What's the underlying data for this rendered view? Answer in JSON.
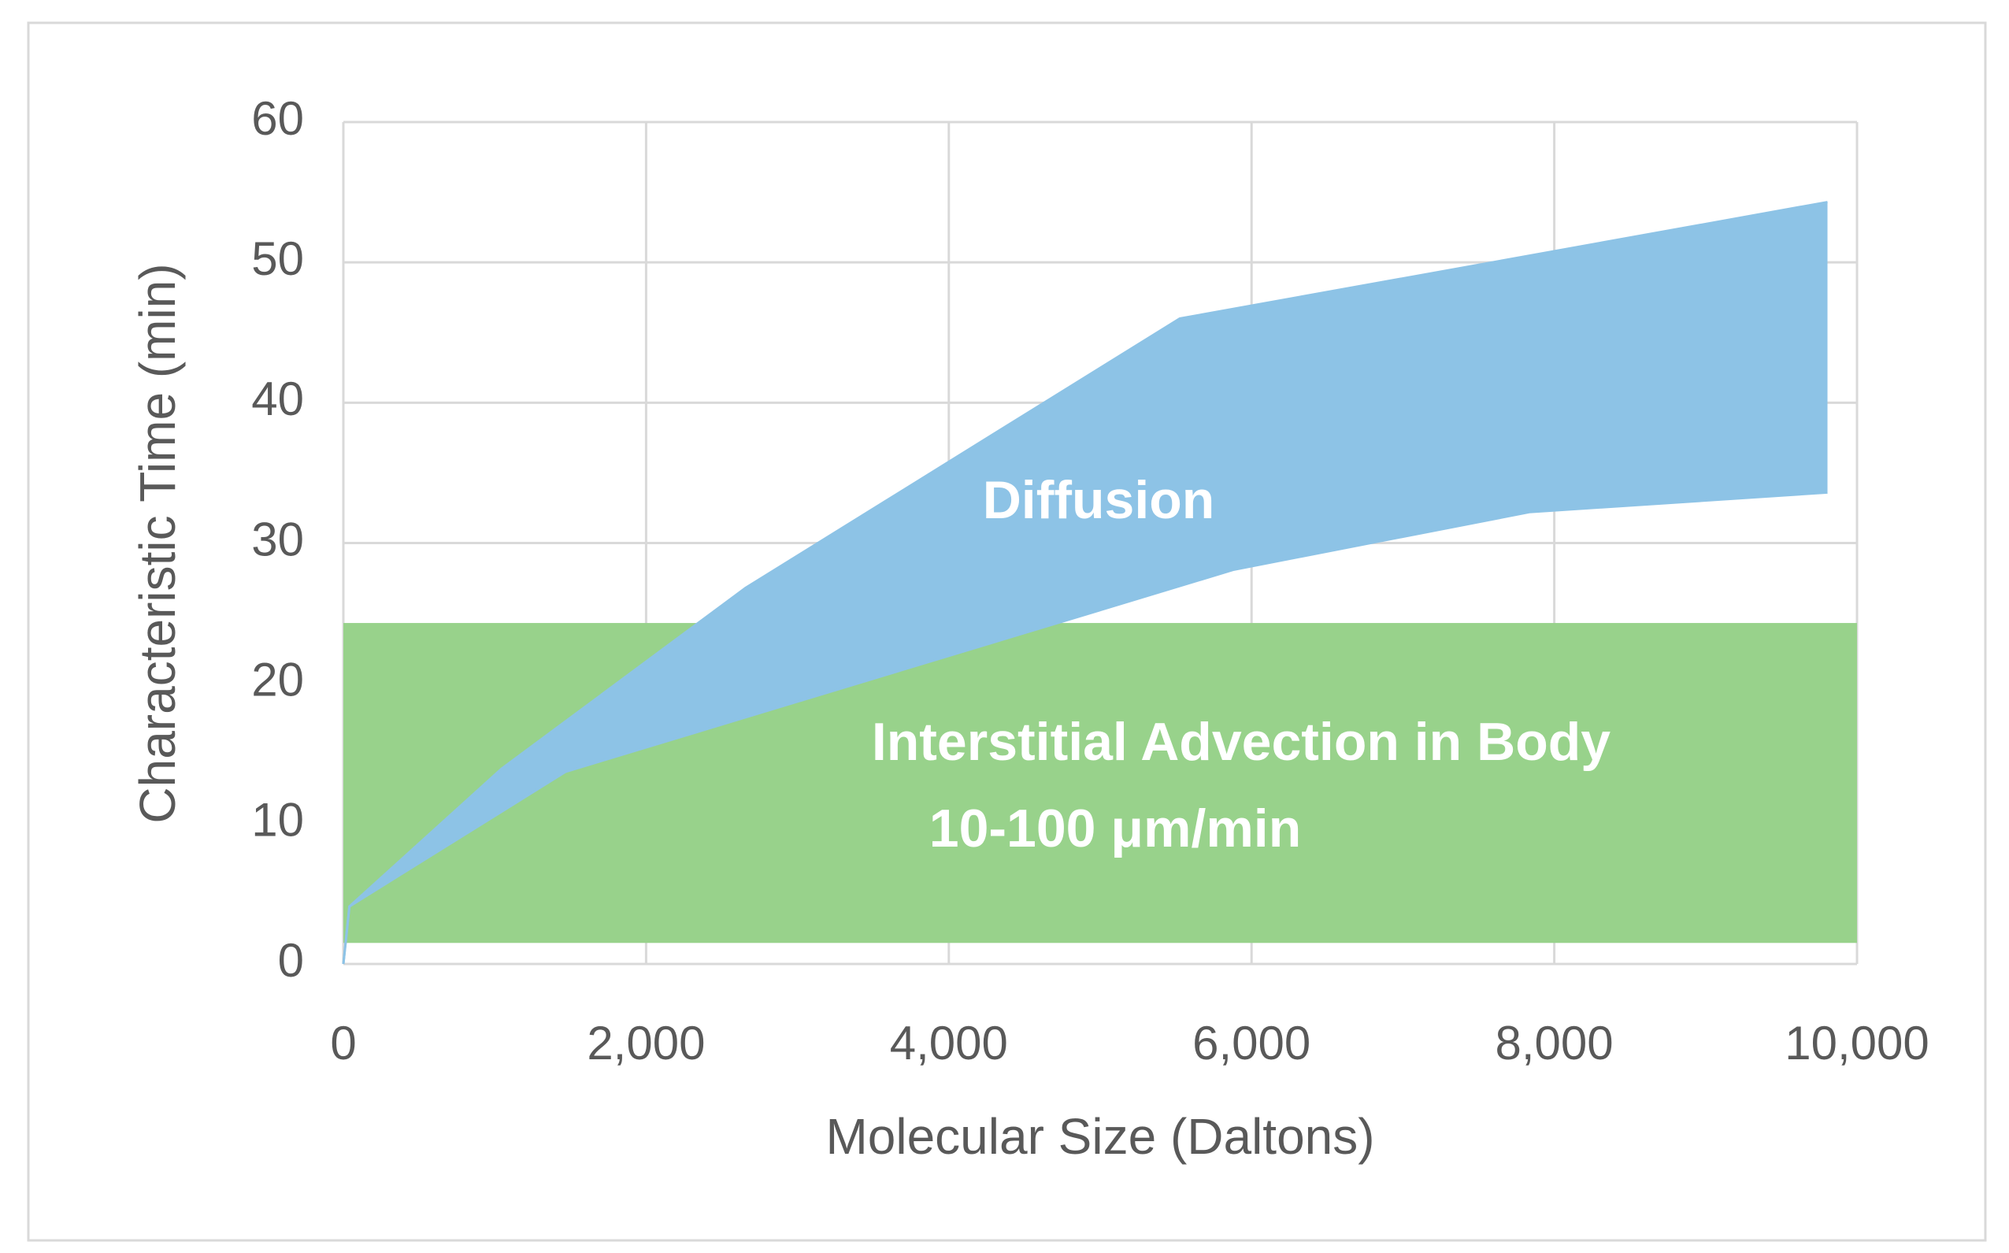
{
  "chart_data": {
    "type": "band",
    "x_label": "Molecular Size (Daltons)",
    "y_label": "Characteristic Time (min)",
    "xlim": [
      0,
      10000
    ],
    "xticks": [
      0,
      {
        "value": 2000,
        "label": "2,000"
      },
      {
        "value": 4000,
        "label": "4,000"
      },
      {
        "value": 6000,
        "label": "6,000"
      },
      {
        "value": 8000,
        "label": "8,000"
      },
      {
        "value": 10000,
        "label": "10,000"
      }
    ],
    "ylim": [
      0,
      60
    ],
    "yticks": [
      0,
      10,
      20,
      30,
      40,
      50,
      60
    ],
    "grid": true,
    "region": {
      "x": [
        0,
        10000
      ],
      "y": [
        1.5,
        24.3
      ],
      "color": "#98d28b",
      "label": "Interstitial Advection in Body",
      "sublabel": "10-100 μm/min"
    },
    "band_color": "#8dc3e6",
    "band_label": "Diffusion",
    "series": [
      {
        "x": [
          0,
          40,
          1044,
          2657,
          5526,
          9805
        ],
        "values": [
          0,
          4.1,
          13.9,
          26.8,
          46.0,
          54.3
        ]
      },
      {
        "x": [
          0,
          40,
          1469,
          5883,
          7835,
          9805
        ],
        "values": [
          0,
          4.1,
          13.7,
          28.1,
          32.2,
          33.6
        ]
      }
    ]
  }
}
